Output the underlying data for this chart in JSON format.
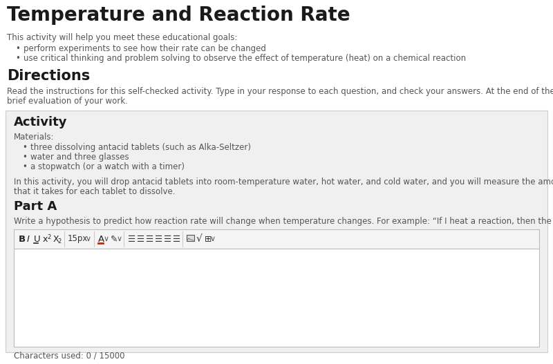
{
  "title": "Temperature and Reaction Rate",
  "subtitle": "This activity will help you meet these educational goals:",
  "goals": [
    "perform experiments to see how their rate can be changed",
    "use critical thinking and problem solving to observe the effect of temperature (heat) on a chemical reaction"
  ],
  "directions_header": "Directions",
  "directions_line1": "Read the instructions for this self-checked activity. Type in your response to each question, and check your answers. At the end of the activity, write a",
  "directions_line2": "brief evaluation of your work.",
  "activity_header": "Activity",
  "materials_label": "Materials:",
  "materials": [
    "three dissolving antacid tablets (such as Alka-Seltzer)",
    "water and three glasses",
    "a stopwatch (or a watch with a timer)"
  ],
  "activity_line1": "In this activity, you will drop antacid tablets into room-temperature water, hot water, and cold water, and you will measure the amount of time",
  "activity_line2": "that it takes for each tablet to dissolve.",
  "part_a_header": "Part A",
  "part_a_text": "Write a hypothesis to predict how reaction rate will change when temperature changes. For example: “If I heat a reaction, then the rate will....”",
  "chars_used": "Characters used: 0 / 15000",
  "bg_color": "#ffffff",
  "panel_bg": "#f0f0f0",
  "panel_border": "#cccccc",
  "text_color": "#555555",
  "title_color": "#1a1a1a",
  "header_color": "#333333",
  "toolbar_bg": "#f5f5f5",
  "editor_border": "#bbbbbb",
  "editor_bg": "#ffffff"
}
